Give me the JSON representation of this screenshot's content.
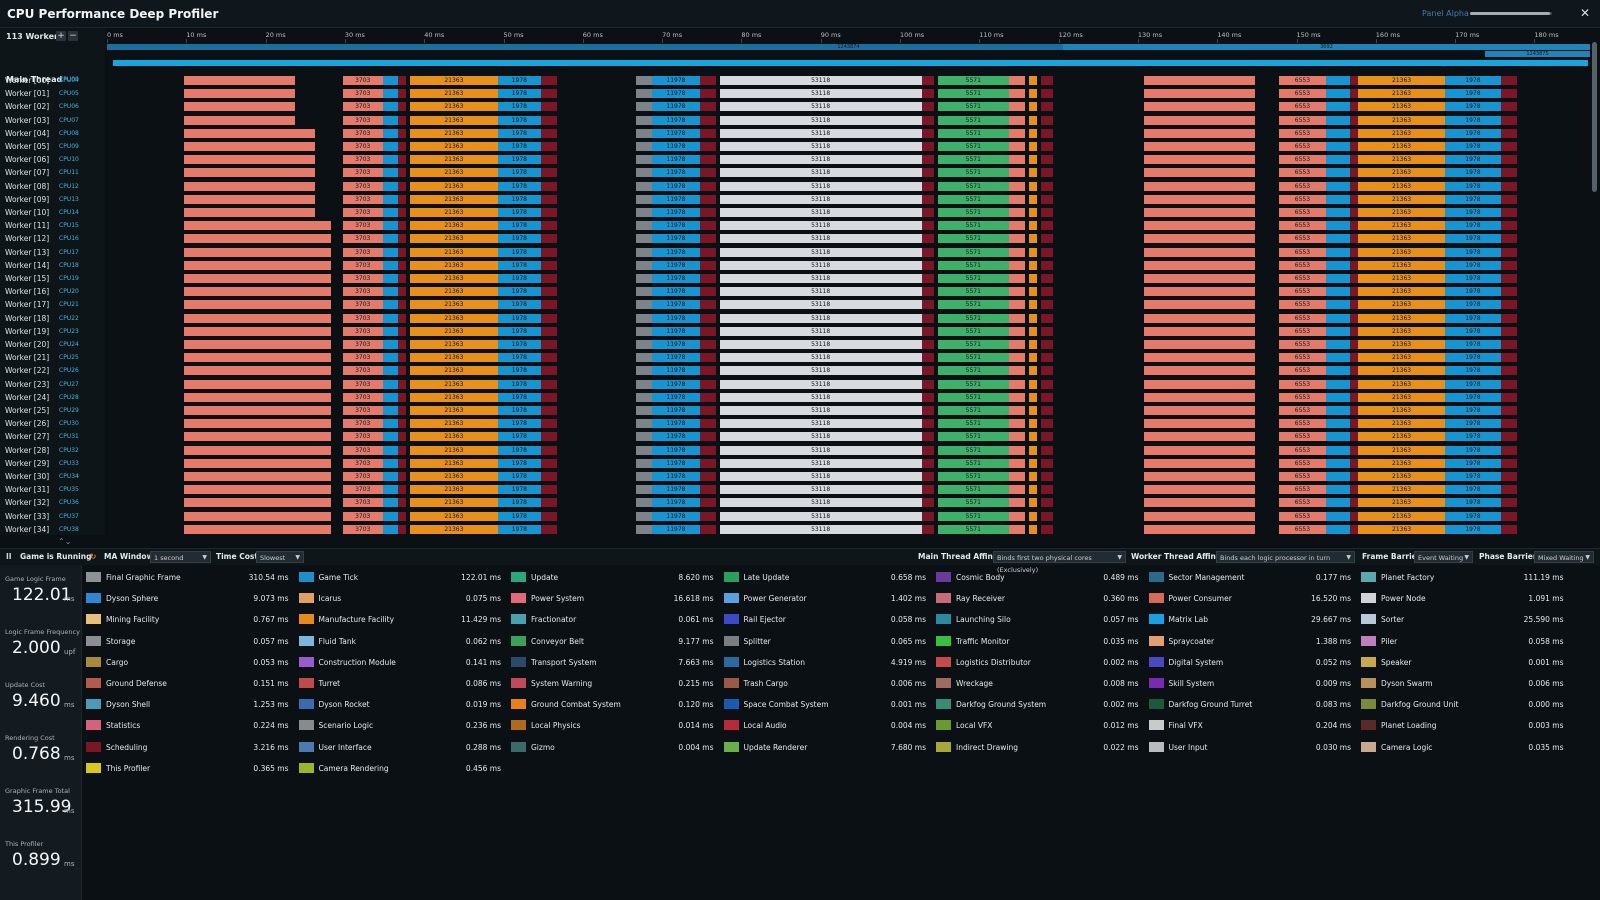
{
  "window": {
    "title": "CPU Performance Deep Profiler",
    "panel_label": "Panel Alpha",
    "panel_slider_value": 0.98,
    "close_glyph": "✕"
  },
  "threads": {
    "workers_label": "113 Workers",
    "add_glyph": "+",
    "remove_glyph": "−",
    "main_label": "Main Thread",
    "main_cpu": "CPU00",
    "rows": [
      {
        "label": "Worker [00]",
        "cpu": "CPU04"
      },
      {
        "label": "Worker [01]",
        "cpu": "CPU05"
      },
      {
        "label": "Worker [02]",
        "cpu": "CPU06"
      },
      {
        "label": "Worker [03]",
        "cpu": "CPU07"
      },
      {
        "label": "Worker [04]",
        "cpu": "CPU08"
      },
      {
        "label": "Worker [05]",
        "cpu": "CPU09"
      },
      {
        "label": "Worker [06]",
        "cpu": "CPU10"
      },
      {
        "label": "Worker [07]",
        "cpu": "CPU11"
      },
      {
        "label": "Worker [08]",
        "cpu": "CPU12"
      },
      {
        "label": "Worker [09]",
        "cpu": "CPU13"
      },
      {
        "label": "Worker [10]",
        "cpu": "CPU14"
      },
      {
        "label": "Worker [11]",
        "cpu": "CPU15"
      },
      {
        "label": "Worker [12]",
        "cpu": "CPU16"
      },
      {
        "label": "Worker [13]",
        "cpu": "CPU17"
      },
      {
        "label": "Worker [14]",
        "cpu": "CPU18"
      },
      {
        "label": "Worker [15]",
        "cpu": "CPU19"
      },
      {
        "label": "Worker [16]",
        "cpu": "CPU20"
      },
      {
        "label": "Worker [17]",
        "cpu": "CPU21"
      },
      {
        "label": "Worker [18]",
        "cpu": "CPU22"
      },
      {
        "label": "Worker [19]",
        "cpu": "CPU23"
      },
      {
        "label": "Worker [20]",
        "cpu": "CPU24"
      },
      {
        "label": "Worker [21]",
        "cpu": "CPU25"
      },
      {
        "label": "Worker [22]",
        "cpu": "CPU26"
      },
      {
        "label": "Worker [23]",
        "cpu": "CPU27"
      },
      {
        "label": "Worker [24]",
        "cpu": "CPU28"
      },
      {
        "label": "Worker [25]",
        "cpu": "CPU29"
      },
      {
        "label": "Worker [26]",
        "cpu": "CPU30"
      },
      {
        "label": "Worker [27]",
        "cpu": "CPU31"
      },
      {
        "label": "Worker [28]",
        "cpu": "CPU32"
      },
      {
        "label": "Worker [29]",
        "cpu": "CPU33"
      },
      {
        "label": "Worker [30]",
        "cpu": "CPU34"
      },
      {
        "label": "Worker [31]",
        "cpu": "CPU35"
      },
      {
        "label": "Worker [32]",
        "cpu": "CPU36"
      },
      {
        "label": "Worker [33]",
        "cpu": "CPU37"
      },
      {
        "label": "Worker [34]",
        "cpu": "CPU38"
      }
    ]
  },
  "ruler": {
    "ticks": [
      "0 ms",
      "10 ms",
      "20 ms",
      "30 ms",
      "40 ms",
      "50 ms",
      "60 ms",
      "70 ms",
      "80 ms",
      "90 ms",
      "100 ms",
      "110 ms",
      "120 ms",
      "130 ms",
      "140 ms",
      "150 ms",
      "160 ms",
      "170 ms",
      "180 ms"
    ]
  },
  "timeline": {
    "main_labels": [
      "1243874",
      "3692",
      "1243875"
    ],
    "segments": [
      {
        "start": 10,
        "end": 28,
        "color": "#e57a6a",
        "label": ""
      },
      {
        "start": 30,
        "end": 35,
        "color": "#e57a6a",
        "label": "3703"
      },
      {
        "start": 35,
        "end": 37,
        "color": "#1595d2",
        "label": ""
      },
      {
        "start": 37,
        "end": 38,
        "color": "#7b1626",
        "label": ""
      },
      {
        "start": 38.5,
        "end": 49.5,
        "color": "#e8901a",
        "label": "21363"
      },
      {
        "start": 49.5,
        "end": 55,
        "color": "#1595d2",
        "label": "1978"
      },
      {
        "start": 55,
        "end": 57,
        "color": "#7b1626",
        "label": ""
      },
      {
        "start": 67,
        "end": 69,
        "color": "#7d8489",
        "label": ""
      },
      {
        "start": 69,
        "end": 75,
        "color": "#1595d2",
        "label": "11978"
      },
      {
        "start": 75,
        "end": 77,
        "color": "#7b1626",
        "label": ""
      },
      {
        "start": 77.5,
        "end": 103,
        "color": "#d7dade",
        "label": "53118"
      },
      {
        "start": 103,
        "end": 104.5,
        "color": "#7b1626",
        "label": ""
      },
      {
        "start": 105,
        "end": 114,
        "color": "#3db06a",
        "label": "5571"
      },
      {
        "start": 114,
        "end": 116,
        "color": "#e57a6a",
        "label": ""
      },
      {
        "start": 116.5,
        "end": 117.5,
        "color": "#e8901a",
        "label": ""
      },
      {
        "start": 118,
        "end": 119.5,
        "color": "#7b1626",
        "label": ""
      },
      {
        "start": 131,
        "end": 145,
        "color": "#e57a6a",
        "label": ""
      },
      {
        "start": 148,
        "end": 154,
        "color": "#e57a6a",
        "label": "6553"
      },
      {
        "start": 154,
        "end": 157,
        "color": "#1595d2",
        "label": ""
      },
      {
        "start": 157,
        "end": 158,
        "color": "#7b1626",
        "label": ""
      },
      {
        "start": 158,
        "end": 169,
        "color": "#e8901a",
        "label": "21363"
      },
      {
        "start": 169,
        "end": 176,
        "color": "#1595d2",
        "label": "1978"
      },
      {
        "start": 176,
        "end": 178,
        "color": "#7b1626",
        "label": ""
      }
    ]
  },
  "controls": {
    "pause_glyph": "II",
    "status": "Game is Running",
    "ma_window_label": "MA Window",
    "ma_window_value": "1 second",
    "time_cost_label": "Time Cost",
    "time_cost_value": "Slowest",
    "main_affinity_label": "Main Thread Affinity",
    "main_affinity_value": "Binds first two physical cores (Exclusively)",
    "worker_affinity_label": "Worker Thread Affinity",
    "worker_affinity_value": "Binds each logic processor in turn",
    "frame_barrier_label": "Frame Barrier",
    "frame_barrier_value": "Event Waiting",
    "phase_barrier_label": "Phase Barrier",
    "phase_barrier_value": "Mixed Waiting"
  },
  "stats": [
    {
      "label": "Game Logic Frame",
      "value": "122.01",
      "unit": "ms"
    },
    {
      "label": "Logic Frame Frequency",
      "value": "2.000",
      "unit": "upf"
    },
    {
      "label": "Update Cost",
      "value": "9.460",
      "unit": "ms"
    },
    {
      "label": "Rendering Cost",
      "value": "0.768",
      "unit": "ms"
    },
    {
      "label": "Graphic Frame Total",
      "value": "315.99",
      "unit": "ms"
    },
    {
      "label": "This Profiler",
      "value": "0.899",
      "unit": "ms"
    }
  ],
  "legend": {
    "columns": [
      [
        {
          "name": "Final Graphic Frame",
          "value": "310.54 ms",
          "color": "#8c9297"
        },
        {
          "name": "Dyson Sphere",
          "value": "9.073 ms",
          "color": "#2e86d4"
        },
        {
          "name": "Mining Facility",
          "value": "0.767 ms",
          "color": "#e8c07a"
        },
        {
          "name": "Storage",
          "value": "0.057 ms",
          "color": "#8b8f92"
        },
        {
          "name": "Cargo",
          "value": "0.053 ms",
          "color": "#a88a3a"
        },
        {
          "name": "Ground Defense",
          "value": "0.151 ms",
          "color": "#b45a4a"
        },
        {
          "name": "Dyson Shell",
          "value": "1.253 ms",
          "color": "#4a9ab8"
        },
        {
          "name": "Statistics",
          "value": "0.224 ms",
          "color": "#d8607a"
        },
        {
          "name": "Scheduling",
          "value": "3.216 ms",
          "color": "#7b1626"
        },
        {
          "name": "This Profiler",
          "value": "0.365 ms",
          "color": "#d9c81a"
        }
      ],
      [
        {
          "name": "Game Tick",
          "value": "122.01 ms",
          "color": "#1e8fc8"
        },
        {
          "name": "Icarus",
          "value": "0.075 ms",
          "color": "#e0a060"
        },
        {
          "name": "Manufacture Facility",
          "value": "11.429 ms",
          "color": "#e88a1a"
        },
        {
          "name": "Fluid Tank",
          "value": "0.062 ms",
          "color": "#7ab6e0"
        },
        {
          "name": "Construction Module",
          "value": "0.141 ms",
          "color": "#9a5ad0"
        },
        {
          "name": "Turret",
          "value": "0.086 ms",
          "color": "#c04a4a"
        },
        {
          "name": "Dyson Rocket",
          "value": "0.019 ms",
          "color": "#3a6ab0"
        },
        {
          "name": "Scenario Logic",
          "value": "0.236 ms",
          "color": "#8a8a8a"
        },
        {
          "name": "User Interface",
          "value": "0.288 ms",
          "color": "#4a7ab0"
        },
        {
          "name": "Camera Rendering",
          "value": "0.456 ms",
          "color": "#9ab82a"
        }
      ],
      [
        {
          "name": "Update",
          "value": "8.620 ms",
          "color": "#2aa87a"
        },
        {
          "name": "Power System",
          "value": "16.618 ms",
          "color": "#e06a7a"
        },
        {
          "name": "Fractionator",
          "value": "0.061 ms",
          "color": "#4aa0b0"
        },
        {
          "name": "Conveyor Belt",
          "value": "9.177 ms",
          "color": "#3aa05a"
        },
        {
          "name": "Transport System",
          "value": "7.663 ms",
          "color": "#2a4a6a"
        },
        {
          "name": "System Warning",
          "value": "0.215 ms",
          "color": "#c04a5a"
        },
        {
          "name": "Ground Combat System",
          "value": "0.120 ms",
          "color": "#e8801a"
        },
        {
          "name": "Local Physics",
          "value": "0.014 ms",
          "color": "#b06a1a"
        },
        {
          "name": "Gizmo",
          "value": "0.004 ms",
          "color": "#3a6a6a"
        }
      ],
      [
        {
          "name": "Late Update",
          "value": "0.658 ms",
          "color": "#2aa060"
        },
        {
          "name": "Power Generator",
          "value": "1.402 ms",
          "color": "#5aa0e0"
        },
        {
          "name": "Rail Ejector",
          "value": "0.058 ms",
          "color": "#3a4ac8"
        },
        {
          "name": "Splitter",
          "value": "0.065 ms",
          "color": "#7a7e82"
        },
        {
          "name": "Logistics Station",
          "value": "4.919 ms",
          "color": "#2a6aa0"
        },
        {
          "name": "Trash Cargo",
          "value": "0.006 ms",
          "color": "#9a5a4a"
        },
        {
          "name": "Space Combat System",
          "value": "0.001 ms",
          "color": "#1a5ab0"
        },
        {
          "name": "Local Audio",
          "value": "0.004 ms",
          "color": "#b82a3a"
        },
        {
          "name": "Update Renderer",
          "value": "7.680 ms",
          "color": "#6ab04a"
        }
      ],
      [
        {
          "name": "Cosmic Body",
          "value": "0.489 ms",
          "color": "#6a3a9a"
        },
        {
          "name": "Ray Receiver",
          "value": "0.360 ms",
          "color": "#c86a7a"
        },
        {
          "name": "Launching Silo",
          "value": "0.057 ms",
          "color": "#2a8aa0"
        },
        {
          "name": "Traffic Monitor",
          "value": "0.035 ms",
          "color": "#3ac040"
        },
        {
          "name": "Logistics Distributor",
          "value": "0.002 ms",
          "color": "#c84a4a"
        },
        {
          "name": "Wreckage",
          "value": "0.008 ms",
          "color": "#a06a60"
        },
        {
          "name": "Darkfog Ground System",
          "value": "0.002 ms",
          "color": "#3a8a7a"
        },
        {
          "name": "Local VFX",
          "value": "0.012 ms",
          "color": "#6a9a2a"
        },
        {
          "name": "Indirect Drawing",
          "value": "0.022 ms",
          "color": "#a8a83a"
        }
      ],
      [
        {
          "name": "Sector Management",
          "value": "0.177 ms",
          "color": "#2a6a8a"
        },
        {
          "name": "Power Consumer",
          "value": "16.520 ms",
          "color": "#d86a5a"
        },
        {
          "name": "Matrix Lab",
          "value": "29.667 ms",
          "color": "#1aa0e0"
        },
        {
          "name": "Spraycoater",
          "value": "1.388 ms",
          "color": "#e0a070"
        },
        {
          "name": "Digital System",
          "value": "0.052 ms",
          "color": "#4a4ac0"
        },
        {
          "name": "Skill System",
          "value": "0.009 ms",
          "color": "#7a2ab0"
        },
        {
          "name": "Darkfog Ground Turret",
          "value": "0.083 ms",
          "color": "#1a5a3a"
        },
        {
          "name": "Final VFX",
          "value": "0.204 ms",
          "color": "#c8ccc8"
        },
        {
          "name": "User Input",
          "value": "0.030 ms",
          "color": "#b8bcc0"
        }
      ],
      [
        {
          "name": "Planet Factory",
          "value": "111.19 ms",
          "color": "#5aa8b0"
        },
        {
          "name": "Power Node",
          "value": "1.091 ms",
          "color": "#d0d4d8"
        },
        {
          "name": "Sorter",
          "value": "25.590 ms",
          "color": "#b8c8d8"
        },
        {
          "name": "Piler",
          "value": "0.058 ms",
          "color": "#c080c0"
        },
        {
          "name": "Speaker",
          "value": "0.001 ms",
          "color": "#c8a84a"
        },
        {
          "name": "Dyson Swarm",
          "value": "0.006 ms",
          "color": "#b8905a"
        },
        {
          "name": "Darkfog Ground Unit",
          "value": "0.000 ms",
          "color": "#7a8a3a"
        },
        {
          "name": "Planet Loading",
          "value": "0.003 ms",
          "color": "#5a2a2a"
        },
        {
          "name": "Camera Logic",
          "value": "0.035 ms",
          "color": "#c8a890"
        }
      ]
    ]
  }
}
